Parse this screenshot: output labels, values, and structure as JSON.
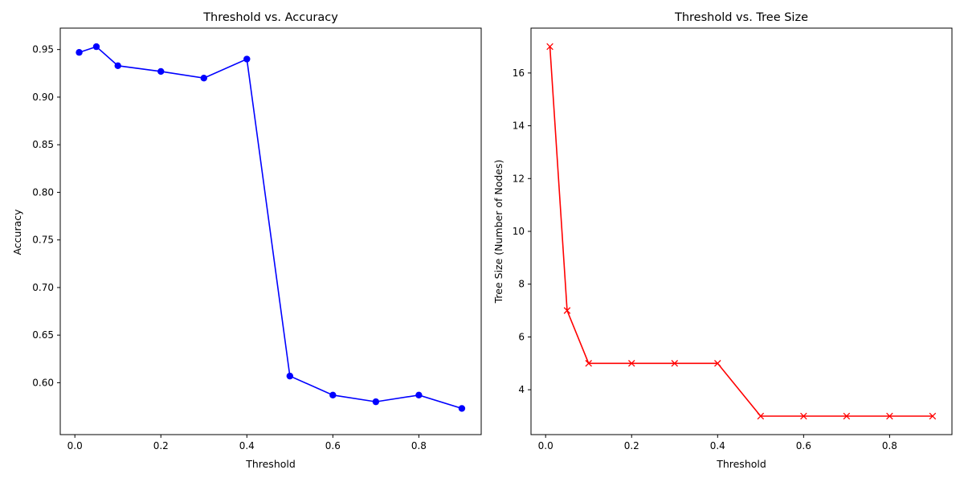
{
  "chart_data": [
    {
      "type": "line",
      "title": "Threshold vs. Accuracy",
      "xlabel": "Threshold",
      "ylabel": "Accuracy",
      "xlim": [
        -0.034,
        0.945
      ],
      "ylim": [
        0.5455,
        0.9725
      ],
      "xticks": [
        0.0,
        0.2,
        0.4,
        0.6,
        0.8
      ],
      "xtick_labels": [
        "0.0",
        "0.2",
        "0.4",
        "0.6",
        "0.8"
      ],
      "yticks": [
        0.6,
        0.65,
        0.7,
        0.75,
        0.8,
        0.85,
        0.9,
        0.95
      ],
      "ytick_labels": [
        "0.60",
        "0.65",
        "0.70",
        "0.75",
        "0.80",
        "0.85",
        "0.90",
        "0.95"
      ],
      "grid": false,
      "series": [
        {
          "color": "#0000ff",
          "marker": "circle",
          "x": [
            0.01,
            0.05,
            0.1,
            0.2,
            0.3,
            0.4,
            0.5,
            0.6,
            0.7,
            0.8,
            0.9
          ],
          "y": [
            0.947,
            0.953,
            0.933,
            0.927,
            0.92,
            0.94,
            0.607,
            0.587,
            0.58,
            0.587,
            0.573
          ]
        }
      ]
    },
    {
      "type": "line",
      "title": "Threshold vs. Tree Size",
      "xlabel": "Threshold",
      "ylabel": "Tree Size (Number of Nodes)",
      "xlim": [
        -0.034,
        0.945
      ],
      "ylim": [
        2.3,
        17.7
      ],
      "xticks": [
        0.0,
        0.2,
        0.4,
        0.6,
        0.8
      ],
      "xtick_labels": [
        "0.0",
        "0.2",
        "0.4",
        "0.6",
        "0.8"
      ],
      "yticks": [
        4,
        6,
        8,
        10,
        12,
        14,
        16
      ],
      "ytick_labels": [
        "4",
        "6",
        "8",
        "10",
        "12",
        "14",
        "16"
      ],
      "grid": false,
      "series": [
        {
          "color": "#ff0000",
          "marker": "x",
          "x": [
            0.01,
            0.05,
            0.1,
            0.2,
            0.3,
            0.4,
            0.5,
            0.6,
            0.7,
            0.8,
            0.9
          ],
          "y": [
            17,
            7,
            5,
            5,
            5,
            5,
            3,
            3,
            3,
            3,
            3
          ]
        }
      ]
    }
  ]
}
